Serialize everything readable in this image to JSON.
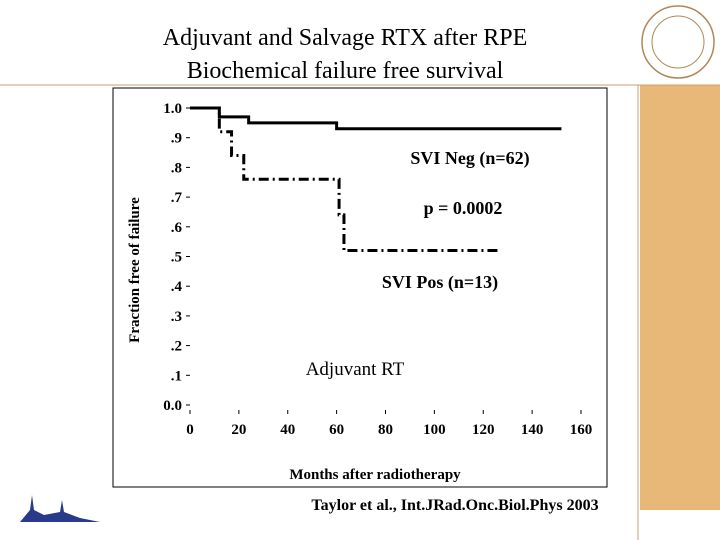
{
  "slide": {
    "title_line1": "Adjuvant and Salvage RTX after RPE",
    "title_line2": "Biochemical failure free survival",
    "citation": "Taylor et al., Int.JRad.Onc.Biol.Phys 2003"
  },
  "chart_data": {
    "type": "line",
    "xlabel": "Months after radiotherapy",
    "ylabel": "Fraction free of failure",
    "xlim": [
      0,
      160
    ],
    "ylim": [
      0,
      1
    ],
    "xticks": [
      0,
      20,
      40,
      60,
      80,
      100,
      120,
      140,
      160
    ],
    "yticks": [
      {
        "value": 0,
        "label": "0.0"
      },
      {
        "value": 0.1,
        "label": ".1"
      },
      {
        "value": 0.2,
        "label": ".2"
      },
      {
        "value": 0.3,
        "label": ".3"
      },
      {
        "value": 0.4,
        "label": ".4"
      },
      {
        "value": 0.5,
        "label": ".5"
      },
      {
        "value": 0.6,
        "label": ".6"
      },
      {
        "value": 0.7,
        "label": ".7"
      },
      {
        "value": 0.8,
        "label": ".8"
      },
      {
        "value": 0.9,
        "label": ".9"
      },
      {
        "value": 1,
        "label": "1.0"
      }
    ],
    "series": [
      {
        "name": "SVI Neg (n=62)",
        "color": "#000000",
        "line_style": "solid",
        "x": [
          0,
          12,
          12,
          24,
          24,
          60,
          60,
          152
        ],
        "values": [
          1,
          1,
          0.97,
          0.97,
          0.95,
          0.95,
          0.93,
          0.93
        ]
      },
      {
        "name": "SVI Pos (n=13)",
        "color": "#000000",
        "line_style": "dashdot",
        "x": [
          0,
          12,
          12,
          17,
          17,
          22,
          22,
          61,
          61,
          63,
          63,
          126
        ],
        "values": [
          1,
          1,
          0.92,
          0.92,
          0.84,
          0.84,
          0.76,
          0.76,
          0.64,
          0.64,
          0.52,
          0.52
        ]
      }
    ],
    "annotations": [
      "p = 0.0002",
      "Adjuvant RT"
    ]
  }
}
